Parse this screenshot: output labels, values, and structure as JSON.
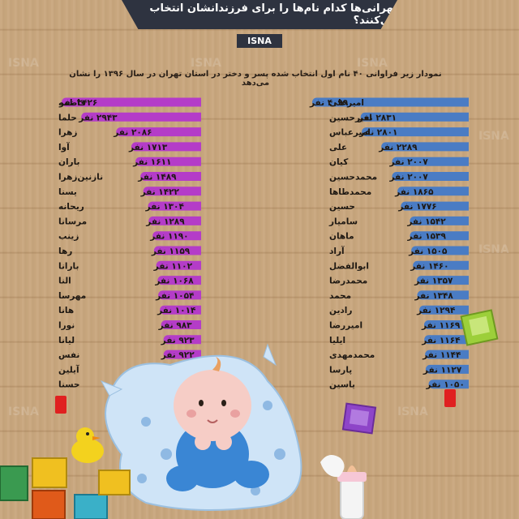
{
  "header": {
    "title": "تهرانی‌ها کدام نام‌ها را برای فرزندانشان انتخاب می‌کنند؟",
    "badge": "ISNA",
    "subtitle": "نمودار زیر فراوانی ۴۰ نام اول انتخاب شده پسر و دختر در استان تهران در سال ۱۳۹۶ را نشان می‌دهد"
  },
  "watermark": "ISNA",
  "colors": {
    "girls_bar": "#b43cc8",
    "boys_bar": "#4a7cc4",
    "title_bg": "#2e3340",
    "wood": "#c9a77e"
  },
  "decor": [
    "baby-on-pillow-illustration",
    "toy-blocks",
    "rubber-duck",
    "baby-bottle"
  ],
  "chart_data": [
    {
      "type": "bar",
      "orientation": "horizontal",
      "value_suffix": "نفر",
      "categories": [
        "فاطمه",
        "حلما",
        "زهرا",
        "آوا",
        "باران",
        "نازنین‌زهرا",
        "یسنا",
        "ریحانه",
        "مرسانا",
        "زینب",
        "رها",
        "بارانا",
        "النا",
        "مهرسا",
        "هانا",
        "نورا",
        "لیانا",
        "نفس",
        "آیلین",
        "حسنا"
      ],
      "values": [
        3426,
        2943,
        2086,
        1713,
        1611,
        1489,
        1422,
        1304,
        1289,
        1190,
        1159,
        1102,
        1068,
        1054,
        1014,
        983,
        923,
        922,
        900,
        899
      ],
      "value_labels": [
        "۳۴۲۶ نفر",
        "۲۹۴۳ نفر",
        "۲۰۸۶ نفر",
        "۱۷۱۳ نفر",
        "۱۶۱۱ نفر",
        "۱۴۸۹ نفر",
        "۱۴۲۲ نفر",
        "۱۳۰۴ نفر",
        "۱۲۸۹ نفر",
        "۱۱۹۰ نفر",
        "۱۱۵۹ نفر",
        "۱۱۰۲ نفر",
        "۱۰۶۸ نفر",
        "۱۰۵۴ نفر",
        "۱۰۱۴ نفر",
        "۹۸۳ نفر",
        "۹۲۳ نفر",
        "۹۲۲ نفر",
        "۹۰۰ نفر",
        "۸۹۹ نفر"
      ]
    },
    {
      "type": "bar",
      "orientation": "horizontal",
      "value_suffix": "نفر",
      "categories": [
        "امیرعلی",
        "امیرحسین",
        "امیرعباس",
        "علی",
        "کیان",
        "محمدحسین",
        "محمدطاها",
        "حسین",
        "سامیار",
        "ماهان",
        "آراد",
        "ابوالفضل",
        "محمدرضا",
        "محمد",
        "رادین",
        "امیررضا",
        "ایلیا",
        "محمدمهدی",
        "پارسا",
        "یاسین"
      ],
      "values": [
        4099,
        2831,
        2801,
        2289,
        2007,
        2007,
        1865,
        1776,
        1542,
        1539,
        1505,
        1460,
        1357,
        1348,
        1294,
        1169,
        1164,
        1144,
        1127,
        1050
      ],
      "value_labels": [
        "۴۰۹۹ نفر",
        "۲۸۳۱ نفر",
        "۲۸۰۱ نفر",
        "۲۲۸۹ نفر",
        "۲۰۰۷ نفر",
        "۲۰۰۷ نفر",
        "۱۸۶۵ نفر",
        "۱۷۷۶ نفر",
        "۱۵۴۲ نفر",
        "۱۵۳۹ نفر",
        "۱۵۰۵ نفر",
        "۱۴۶۰ نفر",
        "۱۳۵۷ نفر",
        "۱۳۴۸ نفر",
        "۱۲۹۴ نفر",
        "۱۱۶۹ نفر",
        "۱۱۶۴ نفر",
        "۱۱۴۴ نفر",
        "۱۱۲۷ نفر",
        "۱۰۵۰ نفر"
      ]
    }
  ]
}
